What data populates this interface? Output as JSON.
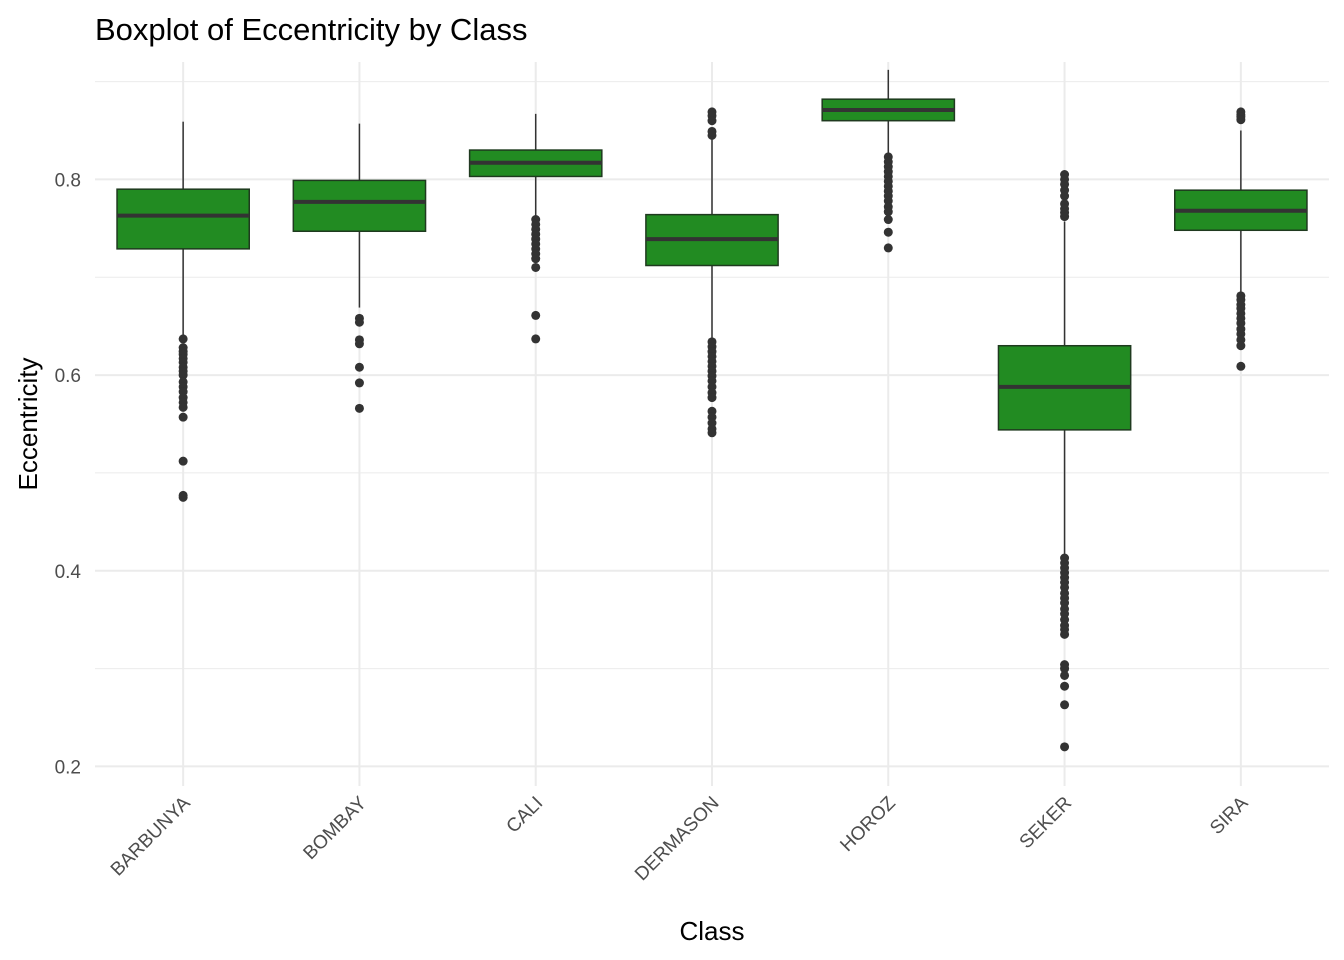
{
  "chart_data": {
    "type": "boxplot",
    "title": "Boxplot of Eccentricity by Class",
    "xlabel": "Class",
    "ylabel": "Eccentricity",
    "categories": [
      "BARBUNYA",
      "BOMBAY",
      "CALI",
      "DERMASON",
      "HOROZ",
      "SEKER",
      "SIRA"
    ],
    "y_ticks": [
      0.2,
      0.4,
      0.6,
      0.8
    ],
    "y_tick_labels": [
      "0.2",
      "0.4",
      "0.6",
      "0.8"
    ],
    "ylim": [
      0.18,
      0.92
    ],
    "grid": true,
    "legend": "none",
    "box_fill": "#228B22",
    "box_stroke": "#1f3a1f",
    "median_color": "#333333",
    "outlier_color": "#333333",
    "grid_color": "#ebebeb",
    "boxes": [
      {
        "category": "BARBUNYA",
        "q1": 0.729,
        "median": 0.763,
        "q3": 0.79,
        "whisker_low": 0.64,
        "whisker_high": 0.859,
        "outliers": [
          0.637,
          0.628,
          0.624,
          0.621,
          0.617,
          0.613,
          0.608,
          0.604,
          0.6,
          0.593,
          0.588,
          0.583,
          0.577,
          0.572,
          0.567,
          0.557,
          0.512,
          0.477,
          0.475
        ]
      },
      {
        "category": "BOMBAY",
        "q1": 0.747,
        "median": 0.777,
        "q3": 0.799,
        "whisker_low": 0.669,
        "whisker_high": 0.857,
        "outliers": [
          0.658,
          0.654,
          0.636,
          0.632,
          0.608,
          0.592,
          0.566
        ]
      },
      {
        "category": "CALI",
        "q1": 0.803,
        "median": 0.817,
        "q3": 0.83,
        "whisker_low": 0.762,
        "whisker_high": 0.867,
        "outliers": [
          0.759,
          0.754,
          0.749,
          0.744,
          0.739,
          0.734,
          0.729,
          0.724,
          0.719,
          0.71,
          0.661,
          0.637
        ]
      },
      {
        "category": "DERMASON",
        "q1": 0.712,
        "median": 0.739,
        "q3": 0.764,
        "whisker_low": 0.638,
        "whisker_high": 0.842,
        "outliers": [
          0.869,
          0.865,
          0.86,
          0.849,
          0.845,
          0.634,
          0.629,
          0.624,
          0.619,
          0.614,
          0.609,
          0.604,
          0.599,
          0.594,
          0.588,
          0.582,
          0.577,
          0.563,
          0.557,
          0.551,
          0.545,
          0.541
        ]
      },
      {
        "category": "HOROZ",
        "q1": 0.86,
        "median": 0.871,
        "q3": 0.882,
        "whisker_low": 0.827,
        "whisker_high": 0.912,
        "outliers": [
          0.823,
          0.818,
          0.813,
          0.808,
          0.803,
          0.798,
          0.793,
          0.788,
          0.783,
          0.778,
          0.772,
          0.767,
          0.759,
          0.746,
          0.73
        ]
      },
      {
        "category": "SEKER",
        "q1": 0.544,
        "median": 0.588,
        "q3": 0.63,
        "whisker_low": 0.416,
        "whisker_high": 0.757,
        "outliers": [
          0.805,
          0.8,
          0.795,
          0.789,
          0.783,
          0.775,
          0.77,
          0.766,
          0.762,
          0.413,
          0.408,
          0.403,
          0.398,
          0.393,
          0.388,
          0.383,
          0.377,
          0.372,
          0.367,
          0.361,
          0.356,
          0.35,
          0.344,
          0.34,
          0.335,
          0.304,
          0.3,
          0.293,
          0.282,
          0.263,
          0.22
        ]
      },
      {
        "category": "SIRA",
        "q1": 0.748,
        "median": 0.768,
        "q3": 0.789,
        "whisker_low": 0.684,
        "whisker_high": 0.85,
        "outliers": [
          0.869,
          0.866,
          0.864,
          0.861,
          0.681,
          0.677,
          0.672,
          0.668,
          0.663,
          0.658,
          0.653,
          0.647,
          0.642,
          0.636,
          0.63,
          0.609
        ]
      }
    ]
  }
}
